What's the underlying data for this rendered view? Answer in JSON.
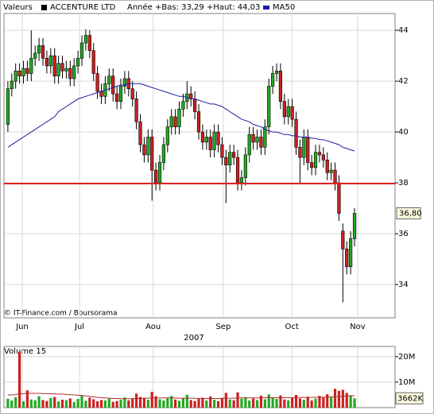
{
  "chart_data": {
    "type": "candlestick",
    "legend_title": "Valeurs",
    "series_label": "ACCENTURE LTD",
    "range_note": "Année +Bas: 33,29 +Haut: 44,03",
    "source": "© IT-Finance.com / Boursorama",
    "x_axis_title": "2007",
    "up_color": "#22aa22",
    "down_color": "#cc2020",
    "x": [
      0,
      1,
      2,
      3,
      4,
      5,
      6,
      7,
      8,
      9,
      10,
      11,
      12,
      13,
      14,
      15,
      16,
      17,
      18,
      19,
      20,
      21,
      22,
      23,
      24,
      25,
      26,
      27,
      28,
      29,
      30,
      31,
      32,
      33,
      34,
      35,
      36,
      37,
      38,
      39,
      40,
      41,
      42,
      43,
      44,
      45,
      46,
      47,
      48,
      49,
      50,
      51,
      52,
      53,
      54,
      55,
      56,
      57,
      58,
      59,
      60,
      61,
      62,
      63,
      64,
      65,
      66,
      67,
      68,
      69,
      70,
      71,
      72,
      73,
      74,
      75,
      76,
      77,
      78,
      79,
      80,
      81,
      82,
      83,
      84,
      85,
      86,
      87,
      88,
      89
    ],
    "open": [
      40.3,
      41.7,
      42.0,
      42.4,
      42.2,
      42.5,
      42.3,
      42.9,
      43.1,
      43.4,
      42.9,
      42.6,
      43.0,
      42.2,
      42.7,
      42.4,
      42.5,
      42.1,
      42.6,
      42.9,
      43.5,
      43.8,
      43.2,
      42.3,
      41.6,
      41.4,
      41.9,
      42.2,
      41.5,
      41.2,
      41.8,
      42.1,
      41.7,
      41.3,
      40.4,
      39.5,
      39.1,
      39.8,
      38.5,
      38.0,
      38.8,
      39.5,
      40.2,
      40.6,
      40.2,
      40.9,
      41.2,
      41.5,
      41.3,
      40.8,
      40.0,
      39.6,
      39.8,
      39.3,
      40.0,
      39.5,
      39.0,
      38.7,
      39.2,
      39.0,
      38.0,
      38.2,
      39.1,
      39.9,
      39.6,
      39.8,
      39.4,
      40.2,
      41.8,
      42.3,
      42.4,
      41.2,
      40.6,
      41.0,
      40.5,
      39.4,
      39.0,
      39.8,
      38.8,
      38.6,
      39.2,
      39.1,
      38.9,
      38.4,
      38.5,
      38.0,
      36.1,
      35.4,
      34.7,
      35.8
    ],
    "high": [
      42.0,
      42.3,
      42.7,
      42.7,
      42.8,
      42.8,
      44.0,
      43.4,
      43.7,
      43.7,
      43.2,
      43.3,
      43.3,
      43.0,
      43.0,
      42.8,
      42.8,
      42.9,
      43.2,
      43.8,
      44.03,
      44.0,
      43.5,
      42.6,
      41.9,
      42.2,
      42.5,
      42.5,
      41.8,
      42.1,
      42.4,
      42.4,
      42.0,
      41.6,
      40.7,
      39.8,
      40.1,
      40.1,
      38.8,
      39.1,
      39.8,
      40.5,
      40.9,
      40.9,
      41.2,
      41.5,
      42.0,
      41.8,
      41.6,
      41.1,
      40.3,
      40.1,
      40.1,
      40.3,
      40.3,
      39.8,
      39.3,
      39.5,
      39.5,
      39.3,
      38.5,
      39.4,
      40.2,
      40.2,
      40.1,
      40.1,
      40.5,
      42.1,
      42.6,
      42.7,
      42.7,
      41.5,
      41.3,
      41.3,
      40.8,
      39.7,
      40.1,
      40.1,
      39.1,
      39.5,
      39.5,
      39.4,
      39.2,
      38.8,
      38.8,
      38.3,
      36.4,
      35.7,
      36.1,
      37.0
    ],
    "low": [
      40.0,
      41.4,
      41.7,
      41.9,
      41.9,
      42.0,
      42.0,
      42.6,
      42.8,
      42.6,
      42.3,
      42.3,
      41.9,
      41.9,
      42.1,
      42.1,
      41.8,
      41.8,
      42.3,
      42.6,
      43.2,
      42.9,
      42.0,
      41.3,
      41.1,
      41.1,
      41.6,
      41.2,
      40.9,
      40.9,
      41.5,
      41.4,
      41.0,
      40.1,
      39.2,
      38.8,
      38.8,
      37.3,
      37.7,
      37.7,
      38.5,
      39.2,
      39.9,
      39.9,
      39.9,
      40.6,
      40.9,
      41.0,
      40.5,
      39.7,
      39.3,
      39.3,
      39.0,
      39.0,
      39.2,
      38.7,
      37.2,
      38.4,
      38.7,
      37.7,
      37.7,
      37.9,
      38.8,
      39.3,
      39.3,
      39.1,
      39.1,
      39.9,
      41.5,
      42.0,
      40.9,
      40.3,
      40.3,
      40.2,
      39.1,
      38.0,
      38.7,
      38.5,
      38.3,
      38.3,
      38.8,
      38.6,
      38.1,
      38.1,
      37.7,
      36.5,
      33.3,
      34.4,
      34.4,
      35.5
    ],
    "close": [
      41.7,
      42.0,
      42.4,
      42.2,
      42.5,
      42.3,
      42.9,
      43.1,
      43.4,
      42.9,
      42.6,
      43.0,
      42.2,
      42.7,
      42.4,
      42.5,
      42.1,
      42.6,
      42.9,
      43.5,
      43.8,
      43.2,
      42.3,
      41.6,
      41.4,
      41.9,
      42.2,
      41.5,
      41.2,
      41.8,
      42.1,
      41.7,
      41.3,
      40.4,
      39.5,
      39.1,
      39.8,
      38.5,
      38.0,
      38.8,
      39.5,
      40.2,
      40.6,
      40.2,
      40.9,
      41.2,
      41.5,
      41.3,
      40.8,
      40.0,
      39.6,
      39.8,
      39.3,
      40.0,
      39.5,
      39.0,
      38.7,
      39.2,
      39.0,
      38.0,
      38.2,
      39.1,
      39.9,
      39.6,
      39.8,
      39.4,
      40.2,
      41.8,
      42.3,
      42.4,
      41.2,
      40.6,
      41.0,
      40.5,
      39.4,
      39.0,
      39.8,
      38.8,
      38.6,
      39.2,
      39.1,
      38.9,
      38.4,
      38.5,
      38.0,
      36.8,
      35.4,
      34.7,
      35.8,
      36.8
    ],
    "last_label": "36,80",
    "ma": {
      "name": "MA50",
      "color": "#1c1ca8",
      "values": [
        39.4,
        39.5,
        39.6,
        39.7,
        39.8,
        39.9,
        40.0,
        40.1,
        40.2,
        40.3,
        40.4,
        40.5,
        40.6,
        40.8,
        40.9,
        41.0,
        41.1,
        41.2,
        41.3,
        41.35,
        41.4,
        41.45,
        41.5,
        41.55,
        41.6,
        41.65,
        41.7,
        41.75,
        41.8,
        41.85,
        41.85,
        41.9,
        41.9,
        41.9,
        41.9,
        41.85,
        41.8,
        41.75,
        41.7,
        41.65,
        41.6,
        41.55,
        41.5,
        41.45,
        41.4,
        41.4,
        41.35,
        41.3,
        41.3,
        41.25,
        41.2,
        41.15,
        41.1,
        41.1,
        41.05,
        41.0,
        40.9,
        40.8,
        40.7,
        40.6,
        40.5,
        40.45,
        40.4,
        40.3,
        40.25,
        40.2,
        40.1,
        40.05,
        40.0,
        40.0,
        39.95,
        39.9,
        39.9,
        39.85,
        39.85,
        39.8,
        39.8,
        39.8,
        39.75,
        39.75,
        39.7,
        39.7,
        39.65,
        39.6,
        39.55,
        39.5,
        39.4,
        39.35,
        39.3,
        39.25
      ]
    },
    "reference_line": {
      "value": 37.97,
      "color": "#dd2222"
    },
    "xlim": [
      -1,
      99.4
    ],
    "xticks": [
      {
        "value": 3.7,
        "label": "Jun"
      },
      {
        "value": 18.4,
        "label": "Jul"
      },
      {
        "value": 37.3,
        "label": "Aou"
      },
      {
        "value": 55.3,
        "label": "Sep"
      },
      {
        "value": 72.9,
        "label": "Oct"
      },
      {
        "value": 89.8,
        "label": "Nov"
      }
    ],
    "ylim": [
      32.69,
      44.66
    ],
    "yticks": [
      34,
      36,
      38,
      40,
      42,
      44
    ],
    "grid": true,
    "volume": {
      "title": "Volume 15",
      "values": [
        3.5,
        2.8,
        4.1,
        22.0,
        2.5,
        6.8,
        3.2,
        2.9,
        4.5,
        3.0,
        2.6,
        3.8,
        4.2,
        2.4,
        3.1,
        2.9,
        3.6,
        2.2,
        3.4,
        4.8,
        2.7,
        3.9,
        3.3,
        2.5,
        3.0,
        2.8,
        3.5,
        2.3,
        2.6,
        3.1,
        4.0,
        2.9,
        3.6,
        5.5,
        4.2,
        3.8,
        3.1,
        6.2,
        4.5,
        3.3,
        2.8,
        3.9,
        4.6,
        3.2,
        2.7,
        3.8,
        5.1,
        3.0,
        2.6,
        3.4,
        3.9,
        2.8,
        4.4,
        3.1,
        2.5,
        3.7,
        5.8,
        3.2,
        2.9,
        6.0,
        3.5,
        4.1,
        2.8,
        3.6,
        3.0,
        4.7,
        3.3,
        5.2,
        4.0,
        3.4,
        4.8,
        3.2,
        2.9,
        3.8,
        5.0,
        3.6,
        3.1,
        4.3,
        2.8,
        3.5,
        4.6,
        3.9,
        5.3,
        4.2,
        7.4,
        6.6,
        7.0,
        5.8,
        4.9,
        3.662
      ],
      "ma": [
        5.0,
        5.0,
        5.1,
        5.5,
        5.5,
        5.6,
        5.6,
        5.6,
        5.6,
        5.5,
        5.5,
        5.4,
        5.4,
        5.3,
        5.3,
        5.2,
        5.1,
        5.0,
        4.9,
        4.8,
        4.6,
        4.4,
        4.2,
        4.0,
        3.9,
        3.8,
        3.7,
        3.6,
        3.6,
        3.5,
        3.5,
        3.5,
        3.5,
        3.6,
        3.6,
        3.7,
        3.7,
        3.8,
        3.8,
        3.8,
        3.8,
        3.8,
        3.8,
        3.8,
        3.7,
        3.7,
        3.7,
        3.7,
        3.7,
        3.6,
        3.6,
        3.6,
        3.6,
        3.6,
        3.6,
        3.7,
        3.7,
        3.7,
        3.7,
        3.8,
        3.8,
        3.8,
        3.8,
        3.8,
        3.8,
        3.8,
        3.9,
        3.9,
        3.9,
        3.9,
        3.9,
        3.9,
        3.9,
        3.9,
        4.0,
        4.0,
        4.0,
        4.0,
        4.0,
        4.0,
        4.1,
        4.1,
        4.2,
        4.2,
        4.3,
        4.4,
        4.5,
        4.6,
        4.6,
        4.7
      ],
      "ma_color": "#b03030",
      "last_label": "3662K",
      "ylim": [
        0,
        24
      ],
      "yticks": [
        {
          "value": 10,
          "label": "10M"
        },
        {
          "value": 20,
          "label": "20M"
        }
      ]
    }
  }
}
